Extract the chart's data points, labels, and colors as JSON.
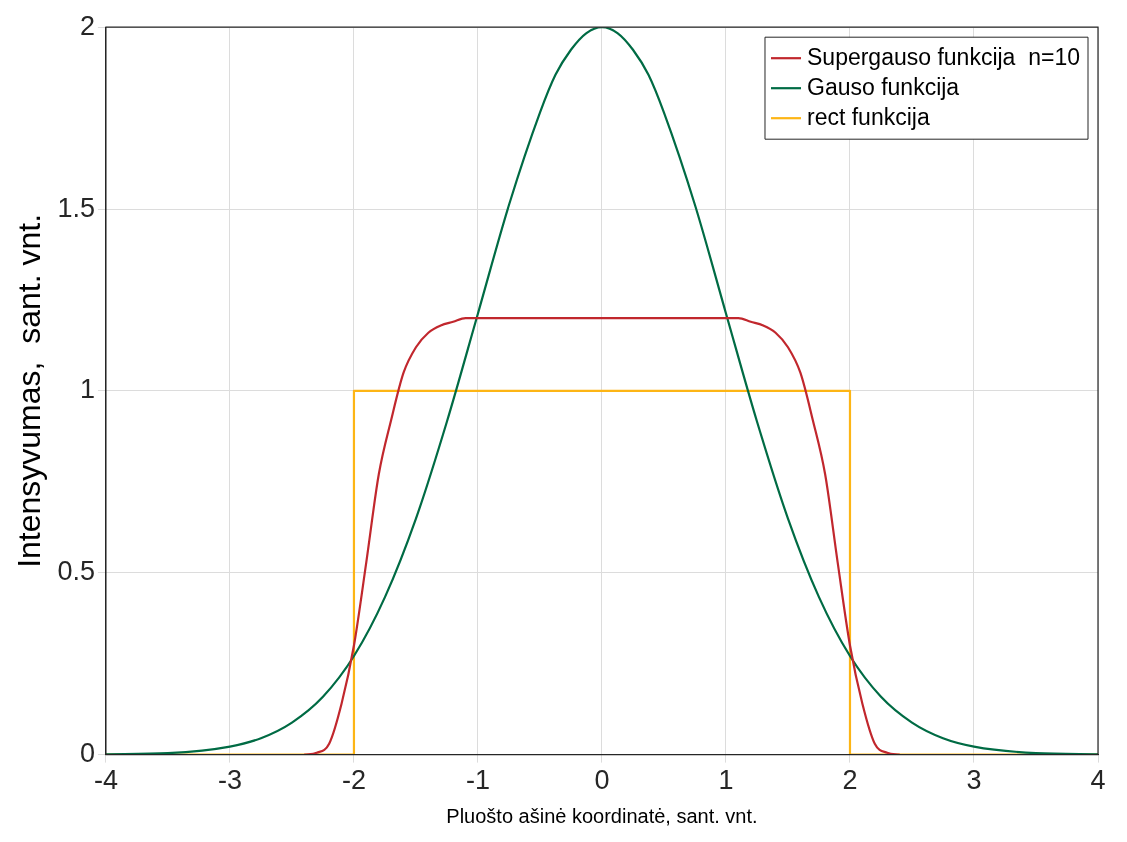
{
  "chart_data": {
    "type": "line",
    "xlabel": "Pluošto ašinė koordinatė, sant. vnt.",
    "ylabel": "Intensyvumas,  sant. vnt.",
    "xlim": [
      -4,
      4
    ],
    "xticks": [
      -4,
      -3,
      -2,
      -1,
      0,
      1,
      2,
      3,
      4
    ],
    "ylim": [
      0,
      2
    ],
    "yticks": [
      0,
      0.5,
      1,
      1.5,
      2
    ],
    "grid": true,
    "legend": "top right",
    "marker": "none",
    "line_style": "solid",
    "series": [
      {
        "name": "Supergauso funkcija  n=10",
        "color": "#c1272d",
        "x": [
          -2.4,
          -2.3,
          -2.2,
          -2.1,
          -2,
          -1.9,
          -1.8,
          -1.7,
          -1.6,
          -1.5,
          -1.4,
          -1.3,
          -1.2,
          -1.1,
          -1,
          0,
          1,
          1.1,
          1.2,
          1.3,
          1.4,
          1.5,
          1.6,
          1.7,
          1.8,
          1.9,
          2,
          2.1,
          2.2,
          2.3,
          2.4
        ],
        "values": [
          0,
          0.005,
          0.03,
          0.14,
          0.3,
          0.53,
          0.77,
          0.92,
          1.05,
          1.12,
          1.16,
          1.18,
          1.19,
          1.2,
          1.2,
          1.2,
          1.2,
          1.2,
          1.19,
          1.18,
          1.16,
          1.12,
          1.05,
          0.92,
          0.77,
          0.53,
          0.3,
          0.14,
          0.03,
          0.005,
          0
        ]
      },
      {
        "name": "Gauso funkcija",
        "color": "#006b44",
        "x": [
          -4,
          -3.5,
          -3,
          -2.75,
          -2.5,
          -2.25,
          -2,
          -1.75,
          -1.5,
          -1.25,
          -1,
          -0.75,
          -0.5,
          -0.375,
          -0.25,
          -0.125,
          0,
          0.125,
          0.25,
          0.375,
          0.5,
          0.75,
          1,
          1.25,
          1.5,
          1.75,
          2,
          2.25,
          2.5,
          2.75,
          3,
          3.5,
          4
        ],
        "values": [
          0.001,
          0.004,
          0.022,
          0.045,
          0.088,
          0.159,
          0.271,
          0.433,
          0.649,
          0.916,
          1.213,
          1.511,
          1.765,
          1.869,
          1.938,
          1.984,
          2,
          1.984,
          1.938,
          1.869,
          1.765,
          1.511,
          1.213,
          0.916,
          0.649,
          0.433,
          0.271,
          0.159,
          0.088,
          0.045,
          0.022,
          0.004,
          0.001
        ]
      },
      {
        "name": "rect funkcija",
        "color": "#fdb515",
        "x": [
          -4,
          -2,
          -2,
          2,
          2,
          4
        ],
        "values": [
          0,
          0,
          1,
          1,
          0,
          0
        ]
      }
    ]
  }
}
